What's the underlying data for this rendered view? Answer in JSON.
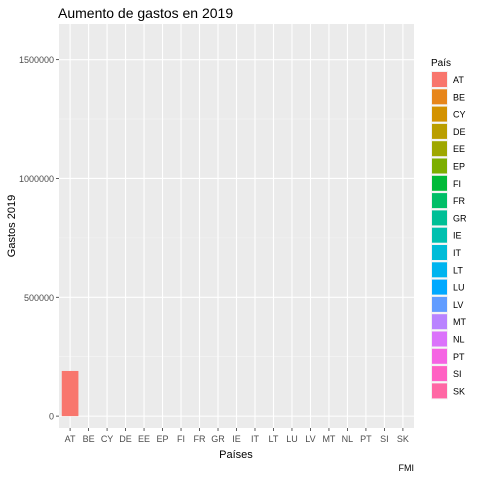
{
  "chart_data": {
    "type": "bar",
    "title": "Aumento de gastos en 2019",
    "xlabel": "Países",
    "ylabel": "Gastos 2019",
    "caption": "FMI",
    "categories": [
      "AT",
      "BE",
      "CY",
      "DE",
      "EE",
      "EP",
      "FI",
      "FR",
      "GR",
      "IE",
      "IT",
      "LT",
      "LU",
      "LV",
      "MT",
      "NL",
      "PT",
      "SI",
      "SK"
    ],
    "values": [
      190000,
      0,
      0,
      0,
      0,
      0,
      0,
      0,
      0,
      0,
      0,
      0,
      0,
      0,
      0,
      0,
      0,
      0,
      0
    ],
    "ylim": [
      -50000,
      1650000
    ],
    "yticks": [
      0,
      500000,
      1000000,
      1500000
    ],
    "grid": true,
    "legend": {
      "title": "País",
      "position": "right",
      "entries": [
        {
          "label": "AT",
          "color": "#F8766D"
        },
        {
          "label": "BE",
          "color": "#E7861B"
        },
        {
          "label": "CY",
          "color": "#D39200"
        },
        {
          "label": "DE",
          "color": "#BA9E00"
        },
        {
          "label": "EE",
          "color": "#9EA700"
        },
        {
          "label": "EP",
          "color": "#7CAE00"
        },
        {
          "label": "FI",
          "color": "#00BA38"
        },
        {
          "label": "FR",
          "color": "#00BE67"
        },
        {
          "label": "GR",
          "color": "#00BF96"
        },
        {
          "label": "IE",
          "color": "#00C0AF"
        },
        {
          "label": "IT",
          "color": "#00BCD8"
        },
        {
          "label": "LT",
          "color": "#00B4EF"
        },
        {
          "label": "LU",
          "color": "#00A9FF"
        },
        {
          "label": "LV",
          "color": "#619CFF"
        },
        {
          "label": "MT",
          "color": "#B983FF"
        },
        {
          "label": "NL",
          "color": "#DB72FB"
        },
        {
          "label": "PT",
          "color": "#F564E3"
        },
        {
          "label": "SI",
          "color": "#FF61C3"
        },
        {
          "label": "SK",
          "color": "#FF67A4"
        }
      ]
    }
  }
}
